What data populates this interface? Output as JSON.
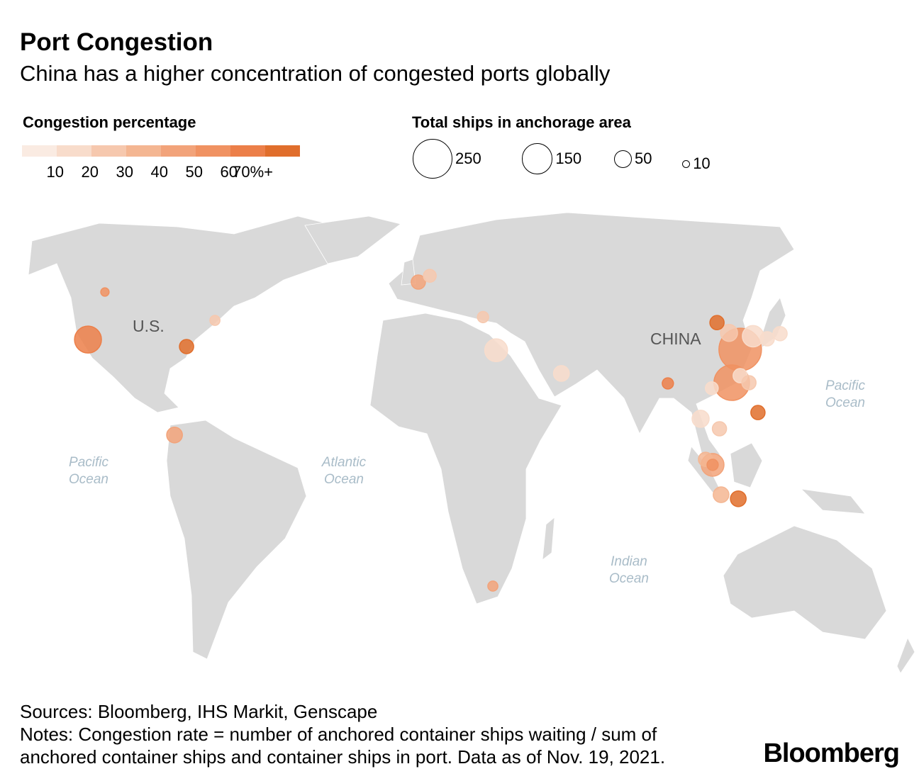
{
  "header": {
    "title": "Port Congestion",
    "subtitle": "China has a higher concentration of congested ports globally"
  },
  "legend": {
    "color_title": "Congestion percentage",
    "color_ticks": [
      "10",
      "20",
      "30",
      "40",
      "50",
      "60",
      "70%+"
    ],
    "colors": [
      "#faebe2",
      "#f8dccb",
      "#f6c8ae",
      "#f4b692",
      "#f2a37a",
      "#f09262",
      "#ec7f49",
      "#e06e2c"
    ],
    "size_title": "Total ships in anchorage area",
    "sizes": [
      {
        "value": 250,
        "label": "250"
      },
      {
        "value": 150,
        "label": "150"
      },
      {
        "value": 50,
        "label": "50"
      },
      {
        "value": 10,
        "label": "10"
      }
    ]
  },
  "map_labels": {
    "us": "U.S.",
    "china": "CHINA",
    "pacific_e": [
      "Pacific",
      "Ocean"
    ],
    "pacific_w": [
      "Pacific",
      "Ocean"
    ],
    "atlantic": [
      "Atlantic",
      "Ocean"
    ],
    "indian": [
      "Indian",
      "Ocean"
    ]
  },
  "chart_data": {
    "type": "bubble-map",
    "title": "Port Congestion",
    "size_metric": "Total ships in anchorage area",
    "color_metric": "Congestion percentage",
    "ports": [
      {
        "lon": -111.7,
        "lat": 47.3,
        "ships": 11,
        "congestion": 50
      },
      {
        "lon": -117.9,
        "lat": 34.4,
        "ships": 115,
        "congestion": 60
      },
      {
        "lon": -71.4,
        "lat": 39.6,
        "ships": 16,
        "congestion": 20
      },
      {
        "lon": -81.8,
        "lat": 32.5,
        "ships": 32,
        "congestion": 75
      },
      {
        "lon": -86.2,
        "lat": 8.5,
        "ships": 39,
        "congestion": 40
      },
      {
        "lon": 3.1,
        "lat": 50.0,
        "ships": 32,
        "congestion": 40
      },
      {
        "lon": 7.3,
        "lat": 51.7,
        "ships": 26,
        "congestion": 20
      },
      {
        "lon": 26.8,
        "lat": 40.5,
        "ships": 20,
        "congestion": 20
      },
      {
        "lon": 31.6,
        "lat": 31.5,
        "ships": 82,
        "congestion": 10
      },
      {
        "lon": 55.5,
        "lat": 25.2,
        "ships": 39,
        "congestion": 10
      },
      {
        "lon": 94.5,
        "lat": 22.5,
        "ships": 20,
        "congestion": 60
      },
      {
        "lon": 112.5,
        "lat": 39.0,
        "ships": 32,
        "congestion": 70
      },
      {
        "lon": 116.9,
        "lat": 36.2,
        "ships": 46,
        "congestion": 20
      },
      {
        "lon": 121.0,
        "lat": 31.7,
        "ships": 287,
        "congestion": 50
      },
      {
        "lon": 125.7,
        "lat": 35.3,
        "ships": 72,
        "congestion": 10
      },
      {
        "lon": 130.9,
        "lat": 34.6,
        "ships": 32,
        "congestion": 10
      },
      {
        "lon": 135.6,
        "lat": 36.0,
        "ships": 32,
        "congestion": 10
      },
      {
        "lon": 117.9,
        "lat": 22.7,
        "ships": 200,
        "congestion": 50
      },
      {
        "lon": 121.0,
        "lat": 24.6,
        "ships": 32,
        "congestion": 10
      },
      {
        "lon": 124.2,
        "lat": 22.7,
        "ships": 32,
        "congestion": 20
      },
      {
        "lon": 110.6,
        "lat": 21.2,
        "ships": 26,
        "congestion": 10
      },
      {
        "lon": 127.5,
        "lat": 14.6,
        "ships": 32,
        "congestion": 70
      },
      {
        "lon": 106.5,
        "lat": 12.9,
        "ships": 46,
        "congestion": 10
      },
      {
        "lon": 113.4,
        "lat": 10.2,
        "ships": 32,
        "congestion": 20
      },
      {
        "lon": 108.3,
        "lat": 1.9,
        "ships": 32,
        "congestion": 30
      },
      {
        "lon": 110.9,
        "lat": 0.4,
        "ships": 82,
        "congestion": 40
      },
      {
        "lon": 110.9,
        "lat": 0.4,
        "ships": 20,
        "congestion": 50
      },
      {
        "lon": 114.0,
        "lat": -7.7,
        "ships": 39,
        "congestion": 30
      },
      {
        "lon": 120.3,
        "lat": -8.8,
        "ships": 39,
        "congestion": 70
      },
      {
        "lon": 30.4,
        "lat": -32.5,
        "ships": 16,
        "congestion": 40
      }
    ]
  },
  "footer": {
    "sources": "Sources: Bloomberg, IHS Markit, Genscape",
    "notes1": "Notes: Congestion rate = number of anchored container ships waiting / sum of",
    "notes2": "anchored container ships and container ships in port. Data as of Nov. 19, 2021.",
    "logo": "Bloomberg"
  }
}
